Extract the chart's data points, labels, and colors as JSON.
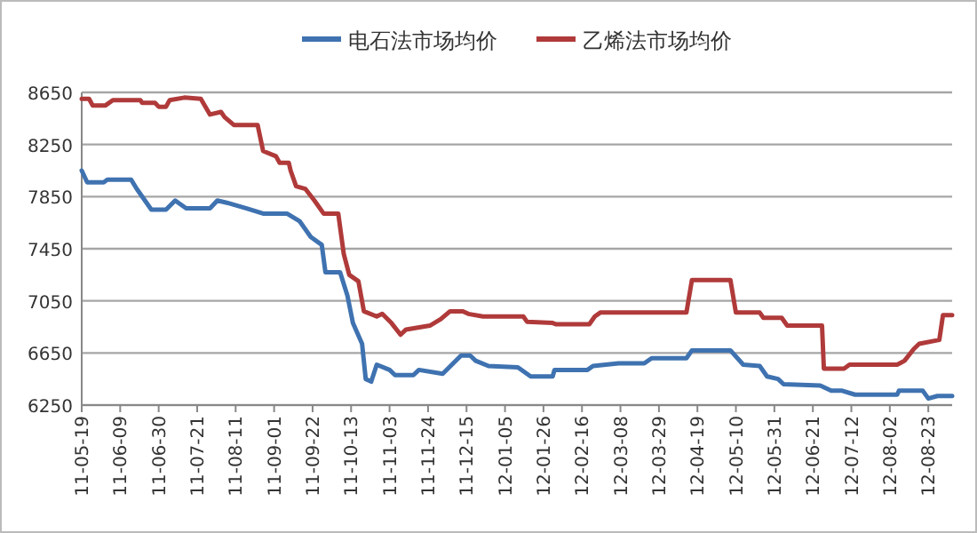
{
  "chart_data": {
    "type": "line",
    "legend": "top",
    "grid": "y",
    "line_style": "solid",
    "marker": "none",
    "xlim": [
      "2011-05-19",
      "2012-09-05"
    ],
    "xticks": [
      {
        "value": "2011-05-19",
        "label": "11-05-19"
      },
      {
        "value": "2011-06-09",
        "label": "11-06-09"
      },
      {
        "value": "2011-06-30",
        "label": "11-06-30"
      },
      {
        "value": "2011-07-21",
        "label": "11-07-21"
      },
      {
        "value": "2011-08-11",
        "label": "11-08-11"
      },
      {
        "value": "2011-09-01",
        "label": "11-09-01"
      },
      {
        "value": "2011-09-22",
        "label": "11-09-22"
      },
      {
        "value": "2011-10-13",
        "label": "11-10-13"
      },
      {
        "value": "2011-11-03",
        "label": "11-11-03"
      },
      {
        "value": "2011-11-24",
        "label": "11-11-24"
      },
      {
        "value": "2011-12-15",
        "label": "11-12-15"
      },
      {
        "value": "2012-01-05",
        "label": "12-01-05"
      },
      {
        "value": "2012-01-26",
        "label": "12-01-26"
      },
      {
        "value": "2012-02-16",
        "label": "12-02-16"
      },
      {
        "value": "2012-03-08",
        "label": "12-03-08"
      },
      {
        "value": "2012-03-29",
        "label": "12-03-29"
      },
      {
        "value": "2012-04-19",
        "label": "12-04-19"
      },
      {
        "value": "2012-05-10",
        "label": "12-05-10"
      },
      {
        "value": "2012-05-31",
        "label": "12-05-31"
      },
      {
        "value": "2012-06-21",
        "label": "12-06-21"
      },
      {
        "value": "2012-07-12",
        "label": "12-07-12"
      },
      {
        "value": "2012-08-02",
        "label": "12-08-02"
      },
      {
        "value": "2012-08-23",
        "label": "12-08-23"
      }
    ],
    "ylim": [
      6250,
      8650
    ],
    "yticks": [
      6250,
      6650,
      7050,
      7450,
      7850,
      8250,
      8650
    ],
    "series": [
      {
        "name": "电石法市场均价",
        "color": "#3f72b0",
        "x": [
          "2011-05-19",
          "2011-05-22",
          "2011-05-31",
          "2011-06-02",
          "2011-06-15",
          "2011-06-18",
          "2011-06-26",
          "2011-07-04",
          "2011-07-09",
          "2011-07-15",
          "2011-07-28",
          "2011-08-01",
          "2011-08-07",
          "2011-08-17",
          "2011-08-26",
          "2011-09-08",
          "2011-09-15",
          "2011-09-21",
          "2011-09-27",
          "2011-09-29",
          "2011-10-07",
          "2011-10-11",
          "2011-10-14",
          "2011-10-19",
          "2011-10-21",
          "2011-10-24",
          "2011-10-27",
          "2011-11-03",
          "2011-11-06",
          "2011-11-16",
          "2011-11-19",
          "2011-12-02",
          "2011-12-12",
          "2011-12-17",
          "2011-12-20",
          "2011-12-27",
          "2012-01-12",
          "2012-01-19",
          "2012-01-31",
          "2012-02-01",
          "2012-02-19",
          "2012-02-22",
          "2012-03-07",
          "2012-03-21",
          "2012-03-25",
          "2012-04-13",
          "2012-04-16",
          "2012-05-07",
          "2012-05-14",
          "2012-05-23",
          "2012-05-27",
          "2012-06-02",
          "2012-06-05",
          "2012-06-25",
          "2012-07-01",
          "2012-07-07",
          "2012-07-14",
          "2012-08-06",
          "2012-08-07",
          "2012-08-20",
          "2012-08-23",
          "2012-08-28",
          "2012-09-05"
        ],
        "values": [
          8050,
          7960,
          7960,
          7980,
          7980,
          7910,
          7750,
          7750,
          7820,
          7760,
          7760,
          7820,
          7800,
          7760,
          7720,
          7720,
          7660,
          7540,
          7480,
          7270,
          7270,
          7090,
          6880,
          6720,
          6450,
          6430,
          6560,
          6520,
          6480,
          6480,
          6520,
          6490,
          6630,
          6630,
          6590,
          6550,
          6540,
          6470,
          6470,
          6520,
          6520,
          6550,
          6570,
          6570,
          6610,
          6610,
          6670,
          6670,
          6560,
          6550,
          6470,
          6450,
          6410,
          6400,
          6360,
          6360,
          6330,
          6330,
          6360,
          6360,
          6300,
          6320,
          6320
        ]
      },
      {
        "name": "乙烯法市场均价",
        "color": "#b03a3a",
        "x": [
          "2011-05-19",
          "2011-05-23",
          "2011-05-25",
          "2011-06-01",
          "2011-06-05",
          "2011-06-20",
          "2011-06-21",
          "2011-06-28",
          "2011-06-30",
          "2011-07-04",
          "2011-07-06",
          "2011-07-14",
          "2011-07-23",
          "2011-07-28",
          "2011-08-03",
          "2011-08-05",
          "2011-08-10",
          "2011-08-23",
          "2011-08-26",
          "2011-09-02",
          "2011-09-04",
          "2011-09-09",
          "2011-09-10",
          "2011-09-13",
          "2011-09-18",
          "2011-09-23",
          "2011-09-28",
          "2011-10-06",
          "2011-10-09",
          "2011-10-12",
          "2011-10-17",
          "2011-10-20",
          "2011-10-27",
          "2011-10-30",
          "2011-11-04",
          "2011-11-09",
          "2011-11-12",
          "2011-11-25",
          "2011-12-01",
          "2011-12-06",
          "2011-12-13",
          "2011-12-16",
          "2011-12-24",
          "2012-01-15",
          "2012-01-17",
          "2012-01-31",
          "2012-02-02",
          "2012-02-20",
          "2012-02-23",
          "2012-02-26",
          "2012-04-13",
          "2012-04-16",
          "2012-05-07",
          "2012-05-10",
          "2012-05-23",
          "2012-05-25",
          "2012-06-04",
          "2012-06-07",
          "2012-06-26",
          "2012-06-27",
          "2012-07-08",
          "2012-07-11",
          "2012-08-06",
          "2012-08-10",
          "2012-08-15",
          "2012-08-18",
          "2012-08-29",
          "2012-08-31",
          "2012-09-05"
        ],
        "values": [
          8600,
          8600,
          8550,
          8550,
          8590,
          8590,
          8570,
          8570,
          8540,
          8540,
          8590,
          8610,
          8600,
          8480,
          8500,
          8460,
          8400,
          8400,
          8200,
          8160,
          8110,
          8110,
          8050,
          7930,
          7910,
          7820,
          7720,
          7720,
          7410,
          7250,
          7200,
          6970,
          6930,
          6950,
          6880,
          6790,
          6830,
          6860,
          6910,
          6970,
          6970,
          6950,
          6930,
          6930,
          6890,
          6880,
          6870,
          6870,
          6930,
          6960,
          6960,
          7210,
          7210,
          6960,
          6960,
          6920,
          6920,
          6860,
          6860,
          6530,
          6530,
          6560,
          6560,
          6590,
          6680,
          6720,
          6750,
          6940,
          6940
        ]
      }
    ]
  }
}
